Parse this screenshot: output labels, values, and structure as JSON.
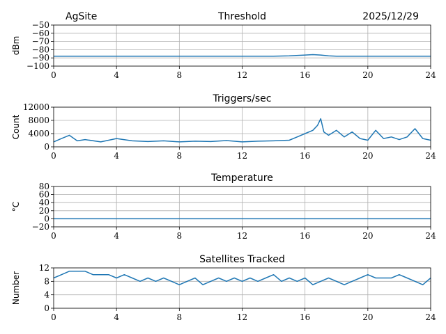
{
  "header": {
    "site": "AgSite",
    "date": "2025/12/29"
  },
  "series_color": "#1f77b4",
  "chart_data": [
    {
      "type": "line",
      "title": "Threshold",
      "xlabel": "",
      "ylabel": "dBm",
      "xlim": [
        0,
        24
      ],
      "ylim": [
        -100,
        -50
      ],
      "xticks": [
        0,
        4,
        8,
        12,
        16,
        20,
        24
      ],
      "yticks": [
        -100,
        -90,
        -80,
        -70,
        -60,
        -50
      ],
      "grid": true,
      "series": [
        {
          "x": [
            0,
            2,
            4,
            6,
            8,
            10,
            12,
            14,
            15,
            16,
            16.5,
            17,
            17.5,
            18,
            20,
            22,
            24
          ],
          "y": [
            -88,
            -88,
            -88,
            -88,
            -88,
            -88,
            -88,
            -88,
            -87.5,
            -86.5,
            -86,
            -86.5,
            -87.5,
            -88,
            -88,
            -88,
            -88
          ]
        }
      ]
    },
    {
      "type": "line",
      "title": "Triggers/sec",
      "xlabel": "",
      "ylabel": "Count",
      "xlim": [
        0,
        24
      ],
      "ylim": [
        0,
        12000
      ],
      "xticks": [
        0,
        4,
        8,
        12,
        16,
        20,
        24
      ],
      "yticks": [
        0,
        4000,
        8000,
        12000
      ],
      "grid": true,
      "series": [
        {
          "x": [
            0,
            0.5,
            1,
            1.5,
            2,
            3,
            4,
            5,
            6,
            7,
            8,
            9,
            10,
            11,
            12,
            13,
            14,
            15,
            15.5,
            16,
            16.5,
            16.8,
            17,
            17.2,
            17.5,
            18,
            18.5,
            19,
            19.5,
            20,
            20.5,
            21,
            21.5,
            22,
            22.5,
            23,
            23.5,
            24
          ],
          "y": [
            1500,
            2500,
            3500,
            1800,
            2200,
            1500,
            2500,
            1800,
            1600,
            1800,
            1500,
            1700,
            1600,
            1900,
            1500,
            1700,
            1800,
            2000,
            3000,
            4000,
            5000,
            6500,
            8500,
            4500,
            3500,
            5000,
            3000,
            4500,
            2500,
            2000,
            5000,
            2500,
            3000,
            2200,
            3000,
            5500,
            2500,
            2000
          ]
        }
      ]
    },
    {
      "type": "line",
      "title": "Temperature",
      "xlabel": "",
      "ylabel": "°C",
      "xlim": [
        0,
        24
      ],
      "ylim": [
        -20,
        80
      ],
      "xticks": [
        0,
        4,
        8,
        12,
        16,
        20,
        24
      ],
      "yticks": [
        -20,
        0,
        20,
        40,
        60,
        80
      ],
      "grid": true,
      "series": [
        {
          "x": [
            0,
            24
          ],
          "y": [
            0,
            0
          ]
        }
      ]
    },
    {
      "type": "line",
      "title": "Satellites Tracked",
      "xlabel": "",
      "ylabel": "Number",
      "xlim": [
        0,
        24
      ],
      "ylim": [
        0,
        12
      ],
      "xticks": [
        0,
        4,
        8,
        12,
        16,
        20,
        24
      ],
      "yticks": [
        0,
        4,
        8,
        12
      ],
      "grid": true,
      "series": [
        {
          "x": [
            0,
            0.5,
            1,
            1.5,
            2,
            2.5,
            3,
            3.5,
            4,
            4.5,
            5,
            5.5,
            6,
            6.5,
            7,
            7.5,
            8,
            8.5,
            9,
            9.5,
            10,
            10.5,
            11,
            11.5,
            12,
            12.5,
            13,
            13.5,
            14,
            14.5,
            15,
            15.5,
            16,
            16.5,
            17,
            17.5,
            18,
            18.5,
            19,
            19.5,
            20,
            20.5,
            21,
            21.5,
            22,
            22.5,
            23,
            23.5,
            24
          ],
          "y": [
            9,
            10,
            11,
            11,
            11,
            10,
            10,
            10,
            9,
            10,
            9,
            8,
            9,
            8,
            9,
            8,
            7,
            8,
            9,
            7,
            8,
            9,
            8,
            9,
            8,
            9,
            8,
            9,
            10,
            8,
            9,
            8,
            9,
            7,
            8,
            9,
            8,
            7,
            8,
            9,
            10,
            9,
            9,
            9,
            10,
            9,
            8,
            7,
            9
          ]
        }
      ]
    }
  ]
}
